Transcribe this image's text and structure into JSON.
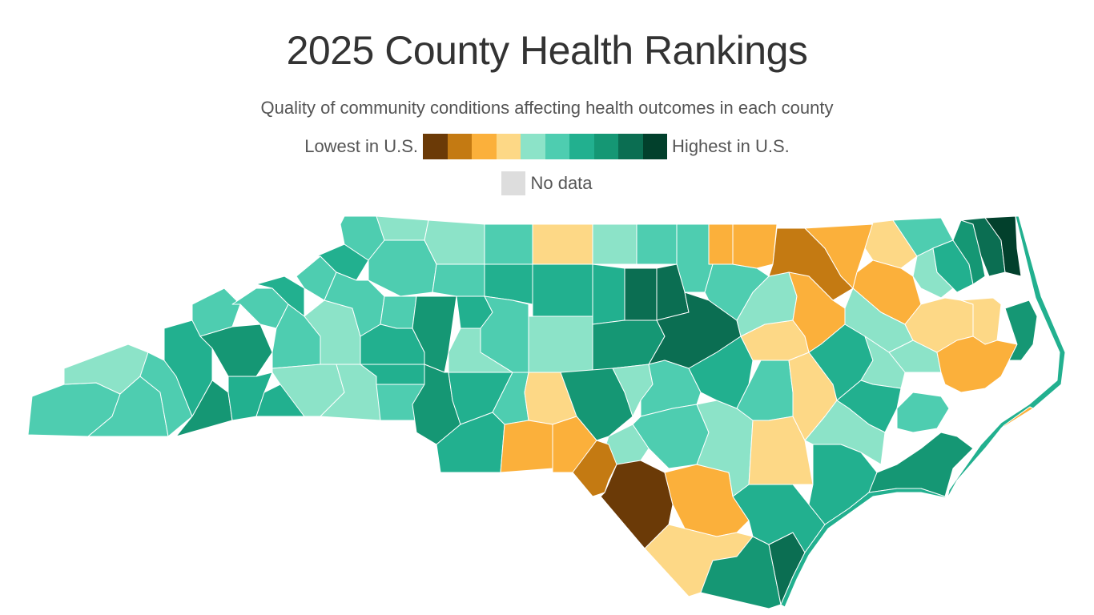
{
  "title": "2025 County Health Rankings",
  "subtitle": "Quality of community conditions affecting health outcomes in each county",
  "legend": {
    "low_label": "Lowest in U.S.",
    "high_label": "Highest in U.S.",
    "colors": [
      "#6b3a07",
      "#c47a12",
      "#fbb03b",
      "#fdd886",
      "#8ce3c8",
      "#4ecdb0",
      "#22b08f",
      "#159774",
      "#0b6e52",
      "#02402c"
    ],
    "no_data_label": "No data",
    "no_data_color": "#dddddd"
  }
}
